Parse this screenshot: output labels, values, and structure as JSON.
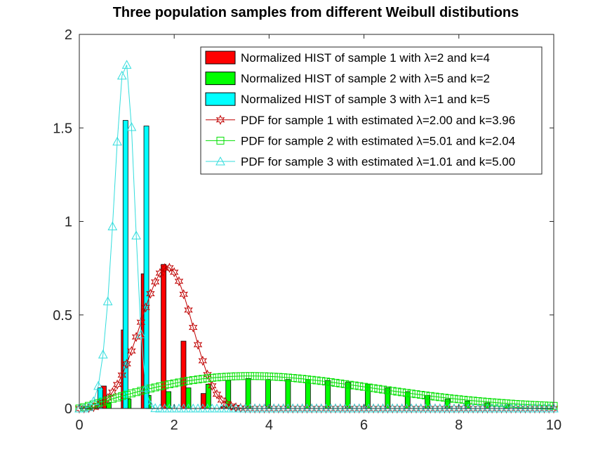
{
  "chart_data": {
    "type": "bar",
    "title": "Three population samples from different Weibull distibutions",
    "xlabel": "",
    "ylabel": "",
    "xlim": [
      0,
      10
    ],
    "ylim": [
      0,
      2
    ],
    "xticks": [
      0,
      2,
      4,
      6,
      8,
      10
    ],
    "yticks": [
      0,
      0.5,
      1,
      1.5,
      2
    ],
    "xtick_labels": [
      "0",
      "2",
      "4",
      "6",
      "8",
      "10"
    ],
    "ytick_labels": [
      "0",
      "0.5",
      "1",
      "1.5",
      "2"
    ],
    "grid": false,
    "legend_position": "top-right",
    "bar_series": [
      {
        "name": "Normalized HIST of sample 1 with λ=2 and k=4",
        "color": "#ff0000",
        "x": [
          0.2,
          0.62,
          1.04,
          1.46,
          1.88,
          2.3,
          2.72,
          3.14
        ],
        "values": [
          0.01,
          0.12,
          0.42,
          0.72,
          0.77,
          0.36,
          0.08,
          0.01
        ]
      },
      {
        "name": "Normalized HIST of sample 2 with λ=5 and k=2",
        "color": "#00ff00",
        "x": [
          0.2,
          0.62,
          1.04,
          1.46,
          1.88,
          2.3,
          2.72,
          3.14,
          3.56,
          3.98,
          4.4,
          4.82,
          5.24,
          5.66,
          6.08,
          6.5,
          6.92,
          7.34,
          7.76,
          8.18,
          8.6,
          9.02
        ],
        "values": [
          0.01,
          0.03,
          0.05,
          0.07,
          0.09,
          0.11,
          0.13,
          0.15,
          0.16,
          0.155,
          0.155,
          0.155,
          0.15,
          0.14,
          0.13,
          0.11,
          0.09,
          0.07,
          0.05,
          0.04,
          0.03,
          0.02
        ]
      },
      {
        "name": "Normalized HIST of sample 3 with λ=1 and k=5",
        "color": "#00ffff",
        "x": [
          0.34,
          0.87,
          1.31
        ],
        "values": [
          0.11,
          1.54,
          1.51
        ]
      }
    ],
    "line_series": [
      {
        "name": "PDF for sample 1 with estimated λ=2.00 and k=3.96",
        "color": "#c00000",
        "marker": "hexagram",
        "lambda": 2.0,
        "k": 3.96
      },
      {
        "name": "PDF for sample 2 with estimated λ=5.01 and k=2.04",
        "color": "#00e000",
        "marker": "square",
        "lambda": 5.01,
        "k": 2.04
      },
      {
        "name": "PDF for sample 3 with estimated λ=1.01 and k=5.00",
        "color": "#33dddd",
        "marker": "triangle",
        "lambda": 1.01,
        "k": 5.0
      }
    ]
  }
}
